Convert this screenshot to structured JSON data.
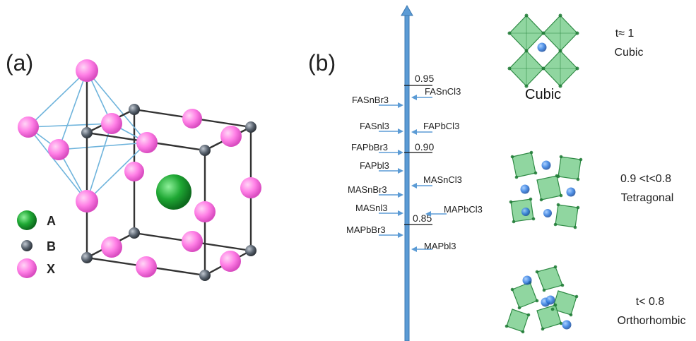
{
  "panel_a": {
    "label": "(a)",
    "legend": [
      {
        "symbol": "A",
        "color": "#1f9a2e",
        "label": "A"
      },
      {
        "symbol": "B",
        "color": "#5a6470",
        "label": "B"
      },
      {
        "symbol": "X",
        "color": "#ff6fe0",
        "label": "X"
      }
    ]
  },
  "panel_b": {
    "label": "(b)",
    "scale_ticks": [
      {
        "value": "0.95"
      },
      {
        "value": "0.90"
      },
      {
        "value": "0.85"
      }
    ],
    "left_compounds": [
      "FASnBr3",
      "FASnl3",
      "FAPbBr3",
      "FAPbl3",
      "MASnBr3",
      "MASnl3",
      "MAPbBr3"
    ],
    "right_compounds": [
      "FASnCl3",
      "FAPbCl3",
      "MASnCl3",
      "MAPbCl3",
      "MAPbl3"
    ],
    "phases": [
      {
        "condition": "t≈ 1",
        "name": "Cubic",
        "caption": "Cubic"
      },
      {
        "condition": "0.9 <t<0.8",
        "name": "Tetragonal"
      },
      {
        "condition": "t< 0.8",
        "name": "Orthorhombic"
      }
    ],
    "colors": {
      "axis": "#5b9bd5",
      "octahedron": "#7ccf8f",
      "octahedron_edge": "#2f8a45",
      "cation": "#2f6fd0"
    }
  }
}
